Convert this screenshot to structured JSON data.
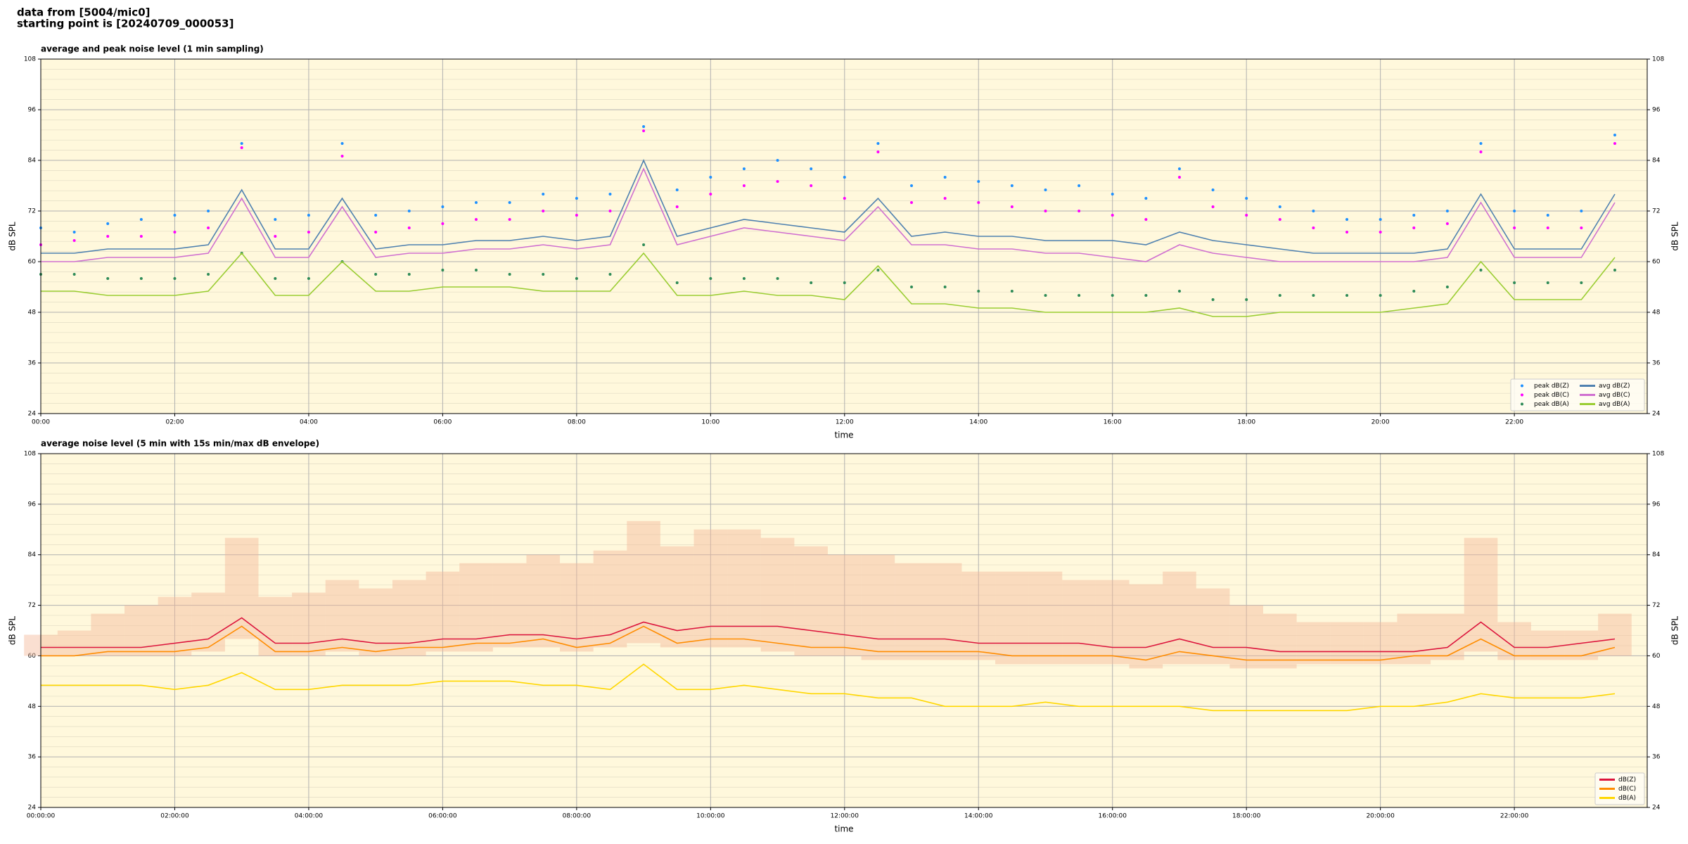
{
  "header": {
    "source": "data from [5004/mic0]",
    "start": "starting point is [20240709_000053]"
  },
  "chart_data": [
    {
      "type": "line",
      "title": "average and peak noise level (1 min sampling)",
      "x_label": "time",
      "y_label": "dB SPL",
      "x": [
        "00:00",
        "00:30",
        "01:00",
        "01:30",
        "02:00",
        "02:30",
        "03:00",
        "03:30",
        "04:00",
        "04:30",
        "05:00",
        "05:30",
        "06:00",
        "06:30",
        "07:00",
        "07:30",
        "08:00",
        "08:30",
        "09:00",
        "09:30",
        "10:00",
        "10:30",
        "11:00",
        "11:30",
        "12:00",
        "12:30",
        "13:00",
        "13:30",
        "14:00",
        "14:30",
        "15:00",
        "15:30",
        "16:00",
        "16:30",
        "17:00",
        "17:30",
        "18:00",
        "18:30",
        "19:00",
        "19:30",
        "20:00",
        "20:30",
        "21:00",
        "21:30",
        "22:00",
        "22:30",
        "23:00",
        "23:30"
      ],
      "xlim": [
        "00:00",
        "23:59"
      ],
      "xticks": [
        "00:00",
        "02:00",
        "04:00",
        "06:00",
        "08:00",
        "10:00",
        "12:00",
        "14:00",
        "16:00",
        "18:00",
        "20:00",
        "22:00"
      ],
      "ylim": [
        24,
        108
      ],
      "yticks": [
        24,
        36,
        48,
        60,
        72,
        84,
        96,
        108
      ],
      "grid": true,
      "legend": "lower right",
      "series": [
        {
          "name": "peak dB(Z)",
          "type": "scatter",
          "color": "#1e90ff",
          "values": [
            68,
            67,
            69,
            70,
            71,
            72,
            88,
            70,
            71,
            88,
            71,
            72,
            73,
            74,
            74,
            76,
            75,
            76,
            92,
            77,
            80,
            82,
            84,
            82,
            80,
            88,
            78,
            80,
            79,
            78,
            77,
            78,
            76,
            75,
            82,
            77,
            75,
            73,
            72,
            70,
            70,
            71,
            72,
            88,
            72,
            71,
            72,
            90
          ]
        },
        {
          "name": "peak dB(C)",
          "type": "scatter",
          "color": "#ff00ff",
          "values": [
            64,
            65,
            66,
            66,
            67,
            68,
            87,
            66,
            67,
            85,
            67,
            68,
            69,
            70,
            70,
            72,
            71,
            72,
            91,
            73,
            76,
            78,
            79,
            78,
            75,
            86,
            74,
            75,
            74,
            73,
            72,
            72,
            71,
            70,
            80,
            73,
            71,
            70,
            68,
            67,
            67,
            68,
            69,
            86,
            68,
            68,
            68,
            88
          ]
        },
        {
          "name": "peak dB(A)",
          "type": "scatter",
          "color": "#2e8b57",
          "values": [
            57,
            57,
            56,
            56,
            56,
            57,
            62,
            56,
            56,
            60,
            57,
            57,
            58,
            58,
            57,
            57,
            56,
            57,
            64,
            55,
            56,
            56,
            56,
            55,
            55,
            58,
            54,
            54,
            53,
            53,
            52,
            52,
            52,
            52,
            53,
            51,
            51,
            52,
            52,
            52,
            52,
            53,
            54,
            58,
            55,
            55,
            55,
            58
          ]
        },
        {
          "name": "avg dB(Z)",
          "type": "line",
          "color": "#4f81b0",
          "values": [
            62,
            62,
            63,
            63,
            63,
            64,
            77,
            63,
            63,
            75,
            63,
            64,
            64,
            65,
            65,
            66,
            65,
            66,
            84,
            66,
            68,
            70,
            69,
            68,
            67,
            75,
            66,
            67,
            66,
            66,
            65,
            65,
            65,
            64,
            67,
            65,
            64,
            63,
            62,
            62,
            62,
            62,
            63,
            76,
            63,
            63,
            63,
            76
          ]
        },
        {
          "name": "avg dB(C)",
          "type": "line",
          "color": "#d070d0",
          "values": [
            60,
            60,
            61,
            61,
            61,
            62,
            75,
            61,
            61,
            73,
            61,
            62,
            62,
            63,
            63,
            64,
            63,
            64,
            82,
            64,
            66,
            68,
            67,
            66,
            65,
            73,
            64,
            64,
            63,
            63,
            62,
            62,
            61,
            60,
            64,
            62,
            61,
            60,
            60,
            60,
            60,
            60,
            61,
            74,
            61,
            61,
            61,
            74
          ]
        },
        {
          "name": "avg dB(A)",
          "type": "line",
          "color": "#9acd32",
          "values": [
            53,
            53,
            52,
            52,
            52,
            53,
            62,
            52,
            52,
            60,
            53,
            53,
            54,
            54,
            54,
            53,
            53,
            53,
            62,
            52,
            52,
            53,
            52,
            52,
            51,
            59,
            50,
            50,
            49,
            49,
            48,
            48,
            48,
            48,
            49,
            47,
            47,
            48,
            48,
            48,
            48,
            49,
            50,
            60,
            51,
            51,
            51,
            61
          ]
        }
      ]
    },
    {
      "type": "line",
      "title": "average noise level (5 min with 15s min/max dB envelope)",
      "x_label": "time",
      "y_label": "dB SPL",
      "x": [
        "00:00:00",
        "00:30:00",
        "01:00:00",
        "01:30:00",
        "02:00:00",
        "02:30:00",
        "03:00:00",
        "03:30:00",
        "04:00:00",
        "04:30:00",
        "05:00:00",
        "05:30:00",
        "06:00:00",
        "06:30:00",
        "07:00:00",
        "07:30:00",
        "08:00:00",
        "08:30:00",
        "09:00:00",
        "09:30:00",
        "10:00:00",
        "10:30:00",
        "11:00:00",
        "11:30:00",
        "12:00:00",
        "12:30:00",
        "13:00:00",
        "13:30:00",
        "14:00:00",
        "14:30:00",
        "15:00:00",
        "15:30:00",
        "16:00:00",
        "16:30:00",
        "17:00:00",
        "17:30:00",
        "18:00:00",
        "18:30:00",
        "19:00:00",
        "19:30:00",
        "20:00:00",
        "20:30:00",
        "21:00:00",
        "21:30:00",
        "22:00:00",
        "22:30:00",
        "23:00:00",
        "23:30:00"
      ],
      "xlim": [
        "00:00:00",
        "23:59:00"
      ],
      "xticks": [
        "00:00:00",
        "02:00:00",
        "04:00:00",
        "06:00:00",
        "08:00:00",
        "10:00:00",
        "12:00:00",
        "14:00:00",
        "16:00:00",
        "18:00:00",
        "20:00:00",
        "22:00:00"
      ],
      "ylim": [
        24,
        108
      ],
      "yticks": [
        24,
        36,
        48,
        60,
        72,
        84,
        96,
        108
      ],
      "grid": true,
      "legend": "lower right",
      "band": {
        "color": "#f4b89a",
        "high": [
          65,
          66,
          70,
          72,
          74,
          75,
          88,
          74,
          75,
          78,
          76,
          78,
          80,
          82,
          82,
          84,
          82,
          85,
          92,
          86,
          90,
          90,
          88,
          86,
          84,
          84,
          82,
          82,
          80,
          80,
          80,
          78,
          78,
          77,
          80,
          76,
          72,
          70,
          68,
          68,
          68,
          70,
          70,
          88,
          68,
          66,
          66,
          70
        ],
        "low": [
          60,
          60,
          60,
          60,
          60,
          61,
          64,
          60,
          60,
          61,
          60,
          60,
          61,
          61,
          62,
          62,
          61,
          62,
          63,
          62,
          62,
          62,
          61,
          60,
          60,
          59,
          59,
          59,
          59,
          58,
          58,
          58,
          58,
          57,
          58,
          58,
          57,
          57,
          58,
          58,
          58,
          58,
          59,
          61,
          59,
          59,
          59,
          60
        ]
      },
      "series": [
        {
          "name": "dB(Z)",
          "type": "line",
          "color": "#dc143c",
          "values": [
            62,
            62,
            62,
            62,
            63,
            64,
            69,
            63,
            63,
            64,
            63,
            63,
            64,
            64,
            65,
            65,
            64,
            65,
            68,
            66,
            67,
            67,
            67,
            66,
            65,
            64,
            64,
            64,
            63,
            63,
            63,
            63,
            62,
            62,
            64,
            62,
            62,
            61,
            61,
            61,
            61,
            61,
            62,
            68,
            62,
            62,
            63,
            64
          ]
        },
        {
          "name": "dB(C)",
          "type": "line",
          "color": "#ff8c00",
          "values": [
            60,
            60,
            61,
            61,
            61,
            62,
            67,
            61,
            61,
            62,
            61,
            62,
            62,
            63,
            63,
            64,
            62,
            63,
            67,
            63,
            64,
            64,
            63,
            62,
            62,
            61,
            61,
            61,
            61,
            60,
            60,
            60,
            60,
            59,
            61,
            60,
            59,
            59,
            59,
            59,
            59,
            60,
            60,
            64,
            60,
            60,
            60,
            62
          ]
        },
        {
          "name": "dB(A)",
          "type": "line",
          "color": "#ffd700",
          "values": [
            53,
            53,
            53,
            53,
            52,
            53,
            56,
            52,
            52,
            53,
            53,
            53,
            54,
            54,
            54,
            53,
            53,
            52,
            58,
            52,
            52,
            53,
            52,
            51,
            51,
            50,
            50,
            48,
            48,
            48,
            49,
            48,
            48,
            48,
            48,
            47,
            47,
            47,
            47,
            47,
            48,
            48,
            49,
            51,
            50,
            50,
            50,
            51
          ]
        }
      ]
    }
  ]
}
